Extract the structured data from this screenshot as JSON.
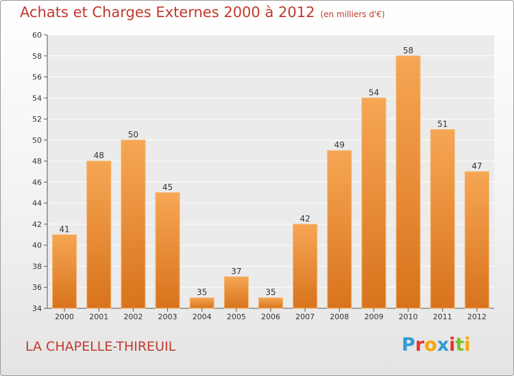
{
  "header": {
    "title": "Achats et Charges Externes 2000 à 2012",
    "unit": "(en milliers d'€)"
  },
  "footer": {
    "commune": "LA CHAPELLE-THIREUIL",
    "logo_text": "Proxiti",
    "logo_colors": [
      "#2f9ad6",
      "#e6342b",
      "#f7a600",
      "#2f9ad6",
      "#e6342b",
      "#7bbf2a",
      "#f7a600"
    ]
  },
  "colors": {
    "title": "#c0392b",
    "bar_top": "#f6a654",
    "bar_bottom": "#d8731c",
    "plot_bg": "#ebebeb",
    "grid": "#ffffff"
  },
  "chart_data": {
    "type": "bar",
    "title": "Achats et Charges Externes 2000 à 2012",
    "subtitle": "(en milliers d'€)",
    "categories": [
      "2000",
      "2001",
      "2002",
      "2003",
      "2004",
      "2005",
      "2006",
      "2007",
      "2008",
      "2009",
      "2010",
      "2011",
      "2012"
    ],
    "values": [
      41,
      48,
      50,
      45,
      35,
      37,
      35,
      42,
      49,
      54,
      58,
      51,
      47
    ],
    "ylim": [
      34,
      60
    ],
    "yticks": [
      34,
      36,
      38,
      40,
      42,
      44,
      46,
      48,
      50,
      52,
      54,
      56,
      58,
      60
    ],
    "data_labels": true,
    "grid": true,
    "legend": "none"
  }
}
